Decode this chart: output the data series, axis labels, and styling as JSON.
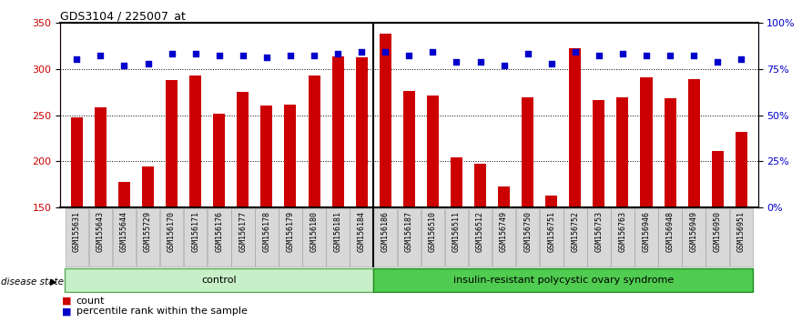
{
  "title": "GDS3104 / 225007_at",
  "samples": [
    "GSM155631",
    "GSM155643",
    "GSM155644",
    "GSM155729",
    "GSM156170",
    "GSM156171",
    "GSM156176",
    "GSM156177",
    "GSM156178",
    "GSM156179",
    "GSM156180",
    "GSM156181",
    "GSM156184",
    "GSM156186",
    "GSM156187",
    "GSM156510",
    "GSM156511",
    "GSM156512",
    "GSM156749",
    "GSM156750",
    "GSM156751",
    "GSM156752",
    "GSM156753",
    "GSM156763",
    "GSM156946",
    "GSM156948",
    "GSM156949",
    "GSM156950",
    "GSM156951"
  ],
  "counts": [
    248,
    258,
    178,
    195,
    288,
    293,
    252,
    275,
    260,
    261,
    293,
    313,
    312,
    338,
    276,
    271,
    204,
    197,
    173,
    269,
    163,
    322,
    266,
    269,
    291,
    268,
    289,
    211,
    232
  ],
  "percentiles": [
    80,
    82,
    77,
    78,
    83,
    83,
    82,
    82,
    81,
    82,
    82,
    83,
    84,
    84,
    82,
    84,
    79,
    79,
    77,
    83,
    78,
    84,
    82,
    83,
    82,
    82,
    82,
    79,
    80
  ],
  "n_control": 13,
  "group_labels": [
    "control",
    "insulin-resistant polycystic ovary syndrome"
  ],
  "ylim_left": [
    150,
    350
  ],
  "ylim_right": [
    0,
    100
  ],
  "yticks_left": [
    150,
    200,
    250,
    300,
    350
  ],
  "yticks_right": [
    0,
    25,
    50,
    75,
    100
  ],
  "bar_color": "#CC0000",
  "dot_color": "#0000CC",
  "ctrl_facecolor": "#c8f0c8",
  "disease_facecolor": "#50cc50",
  "ctrl_edgecolor": "#55aa55",
  "disease_edgecolor": "#228822",
  "title_fontsize": 9,
  "tick_fontsize": 7,
  "axis_fontsize": 8,
  "legend_fontsize": 8
}
